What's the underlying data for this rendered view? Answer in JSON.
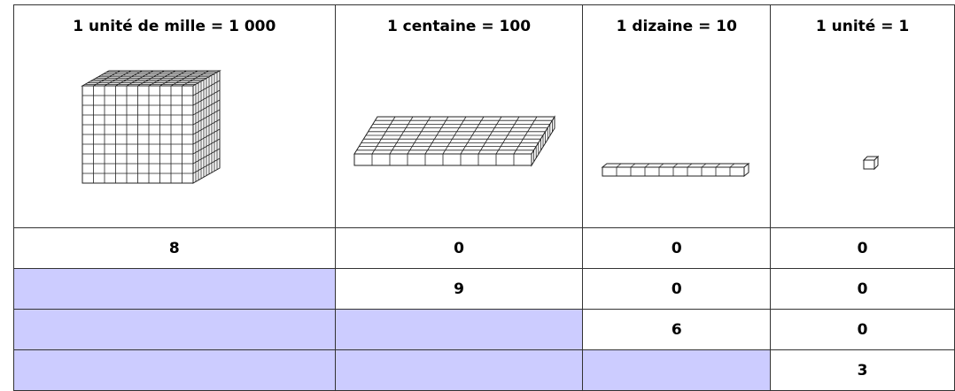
{
  "table": {
    "columns": [
      "1 unité de mille  = 1 000",
      "1 centaine = 100",
      "1 dizaine = 10",
      "1 unité = 1"
    ],
    "rows": [
      [
        8,
        0,
        0,
        0
      ],
      [
        null,
        9,
        0,
        0
      ],
      [
        null,
        null,
        6,
        0
      ],
      [
        null,
        null,
        null,
        3
      ]
    ]
  }
}
